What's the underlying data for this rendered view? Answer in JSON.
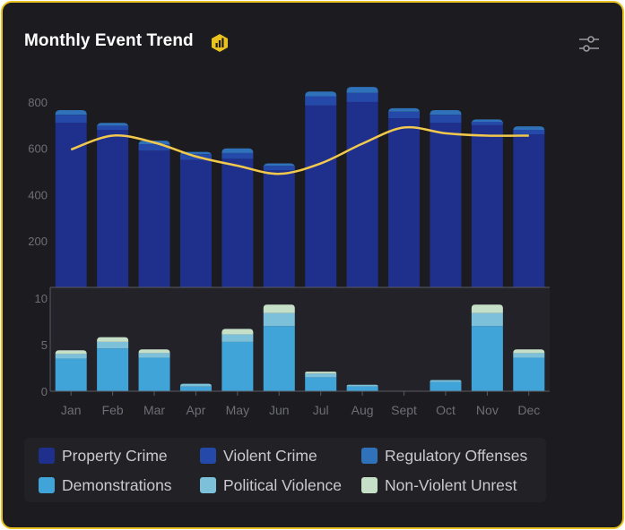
{
  "card": {
    "title": "Monthly Event Trend",
    "badge_icon": "bar-chart-icon",
    "settings_icon": "sliders-icon",
    "accent": "#e9c21f"
  },
  "chart_data": {
    "type": "bar",
    "stacked": true,
    "categories": [
      "Jan",
      "Feb",
      "Mar",
      "Apr",
      "May",
      "Jun",
      "Jul",
      "Aug",
      "Sept",
      "Oct",
      "Nov",
      "Dec"
    ],
    "upper_panel": {
      "ylim": [
        0,
        850
      ],
      "yticks": [
        200,
        400,
        600,
        800
      ],
      "series": [
        {
          "name": "Property Crime",
          "color": "#1e2f8c",
          "values": [
            710,
            680,
            590,
            550,
            555,
            505,
            785,
            800,
            730,
            710,
            700,
            660
          ]
        },
        {
          "name": "Violent Crime",
          "color": "#2549a8",
          "values": [
            35,
            18,
            28,
            25,
            25,
            20,
            40,
            40,
            28,
            35,
            15,
            20
          ]
        },
        {
          "name": "Regulatory Offenses",
          "color": "#2f72b9",
          "values": [
            20,
            12,
            15,
            10,
            20,
            10,
            20,
            25,
            15,
            20,
            10,
            15
          ]
        }
      ],
      "trend_line": {
        "name": "Trend",
        "color": "#f2c94c",
        "values": [
          595,
          655,
          625,
          565,
          525,
          490,
          535,
          620,
          690,
          665,
          655,
          655
        ]
      }
    },
    "lower_panel": {
      "ylim": [
        0,
        10
      ],
      "yticks": [
        0,
        5,
        10
      ],
      "series": [
        {
          "name": "Demonstrations",
          "color": "#41a4d8",
          "values": [
            3.5,
            4.6,
            3.6,
            0.5,
            5.3,
            7.0,
            1.5,
            0.5,
            0,
            1.0,
            7.0,
            3.6
          ]
        },
        {
          "name": "Political Violence",
          "color": "#7cc0d9",
          "values": [
            0.5,
            0.7,
            0.5,
            0.3,
            0.8,
            1.4,
            0.4,
            0.2,
            0,
            0.2,
            1.4,
            0.5
          ]
        },
        {
          "name": "Non-Violent Unrest",
          "color": "#c6e0c8",
          "values": [
            0.4,
            0.5,
            0.4,
            0,
            0.6,
            0.9,
            0.2,
            0,
            0,
            0,
            0.9,
            0.4
          ]
        }
      ]
    },
    "xlabel": "",
    "ylabel": "",
    "legend_position": "bottom"
  },
  "legend": [
    {
      "label": "Property Crime",
      "color": "#1e2f8c"
    },
    {
      "label": "Violent Crime",
      "color": "#2549a8"
    },
    {
      "label": "Regulatory Offenses",
      "color": "#2f72b9"
    },
    {
      "label": "Demonstrations",
      "color": "#41a4d8"
    },
    {
      "label": "Political Violence",
      "color": "#7cc0d9"
    },
    {
      "label": "Non-Violent Unrest",
      "color": "#c6e0c8"
    }
  ]
}
